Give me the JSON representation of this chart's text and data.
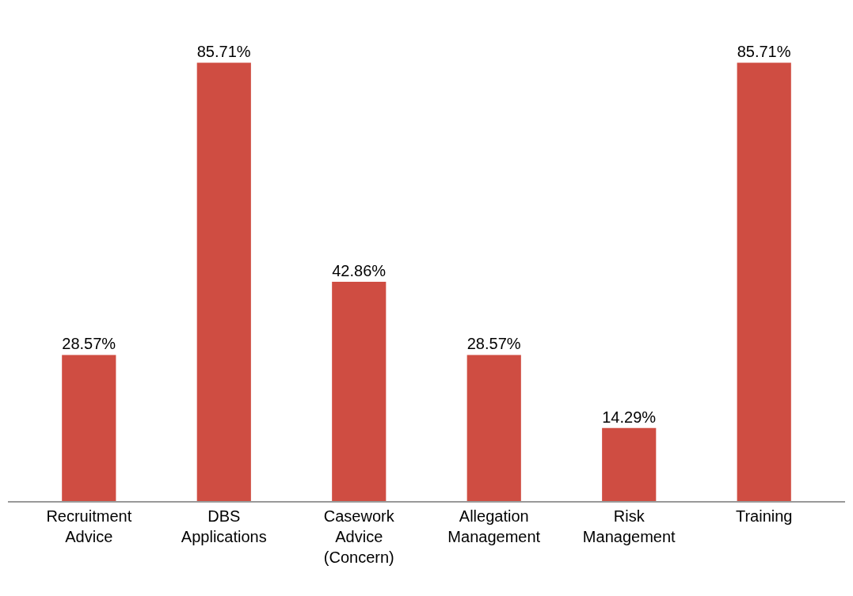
{
  "chart_data": {
    "type": "bar",
    "categories": [
      "Recruitment Advice",
      "DBS Applications",
      "Casework Advice (Concern)",
      "Allegation Management",
      "Risk Management",
      "Training"
    ],
    "values": [
      28.57,
      85.71,
      42.86,
      28.57,
      14.29,
      85.71
    ],
    "value_labels": [
      "28.57%",
      "85.71%",
      "42.86%",
      "28.57%",
      "14.29%",
      "85.71%"
    ],
    "color": "#cf4d42",
    "legend": false
  }
}
